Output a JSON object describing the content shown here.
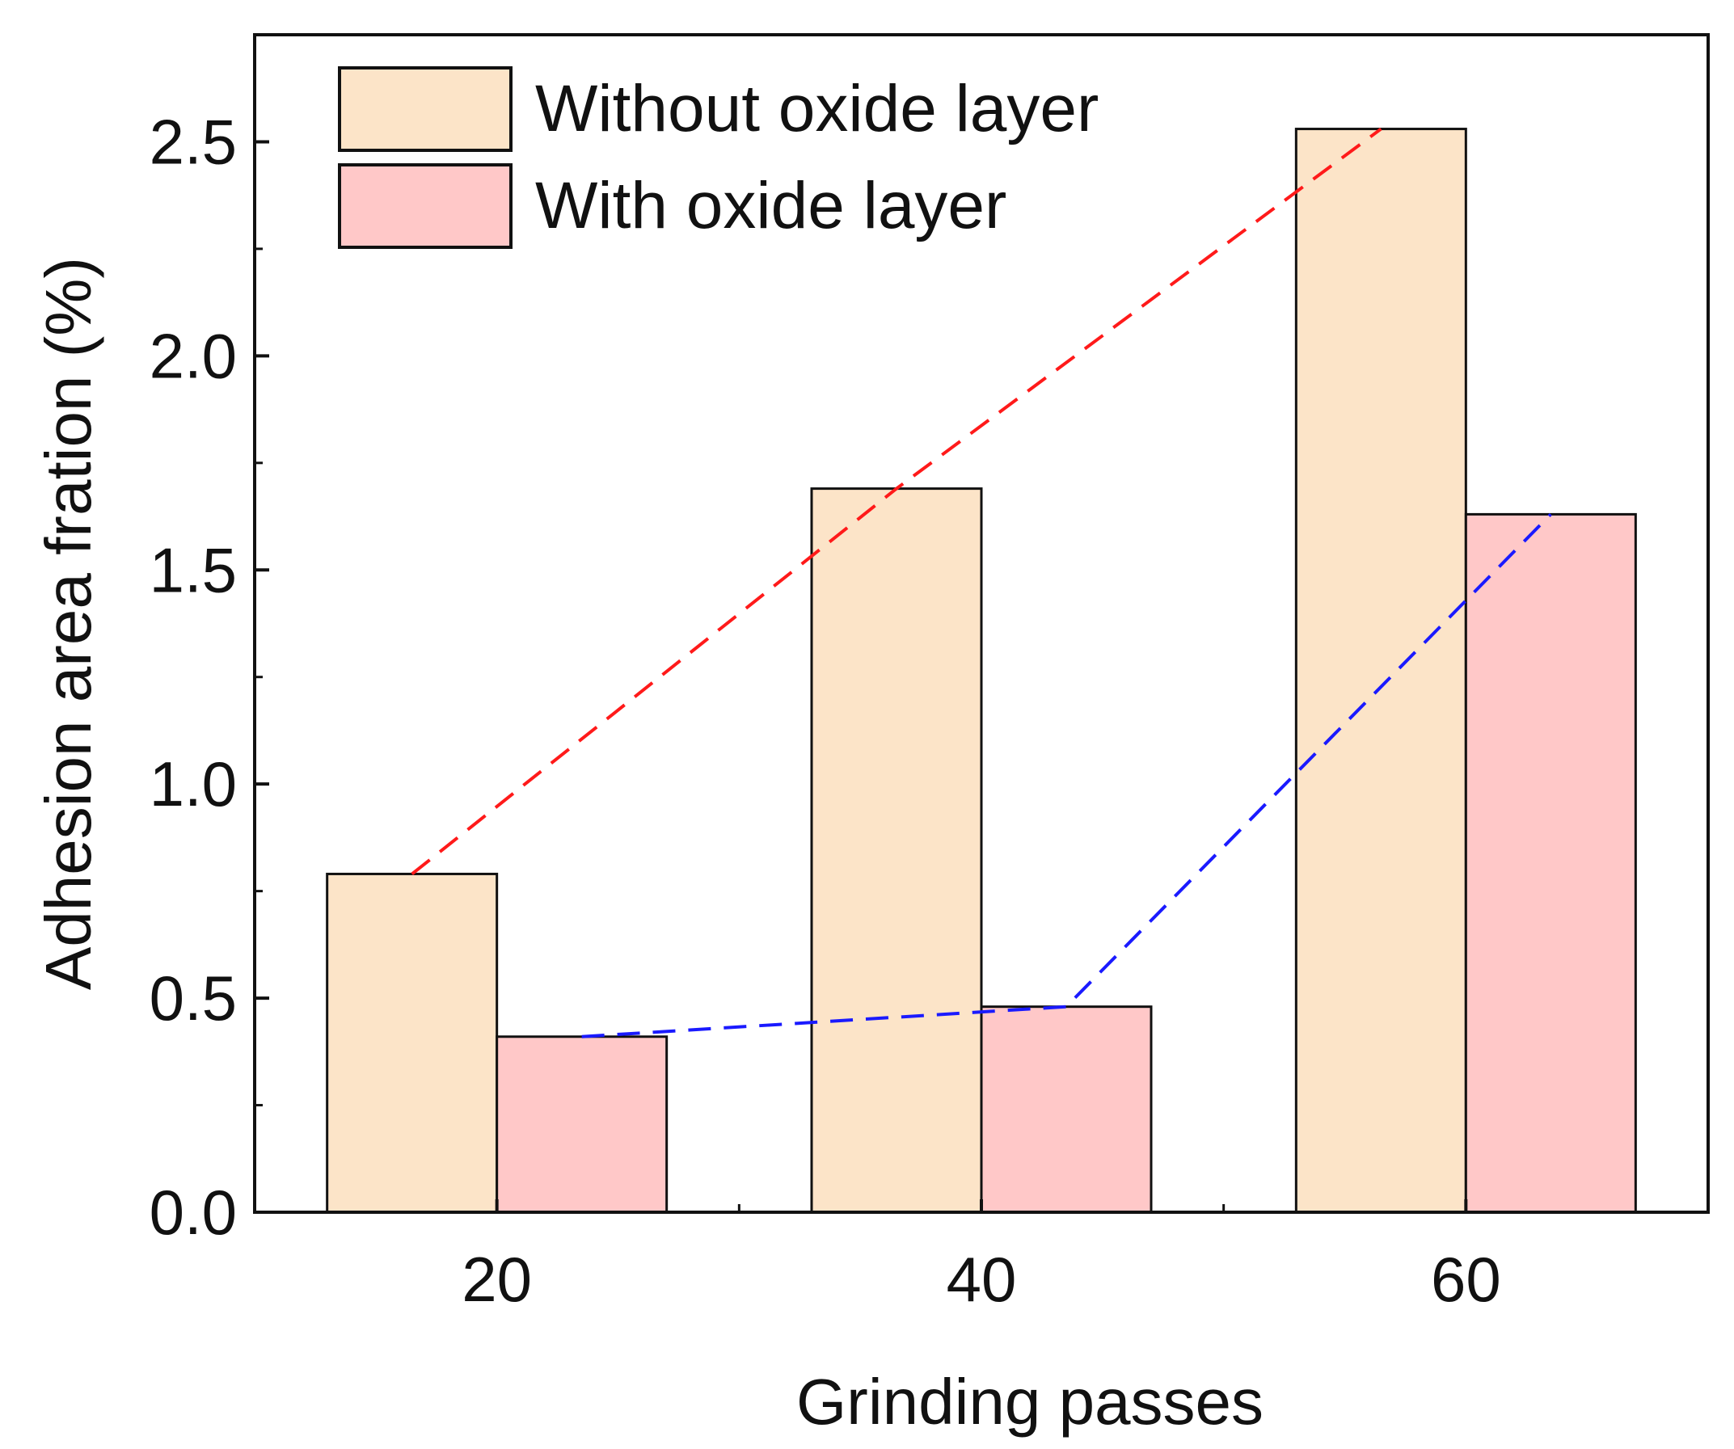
{
  "chart_data": {
    "type": "bar",
    "title": "",
    "xlabel": "Grinding passes",
    "ylabel": "Adhesion area fration (%)",
    "categories": [
      "20",
      "40",
      "60"
    ],
    "ylim": [
      0,
      2.75
    ],
    "yticks": [
      "0.0",
      "0.5",
      "1.0",
      "1.5",
      "2.0",
      "2.5"
    ],
    "ytick_values": [
      0.0,
      0.5,
      1.0,
      1.5,
      2.0,
      2.5
    ],
    "grid": false,
    "legend_position": "top-left",
    "series": [
      {
        "name": "Without oxide layer",
        "values": [
          0.79,
          1.69,
          2.53
        ],
        "color": "#FCE4C8",
        "trend_color": "#FF1A1A"
      },
      {
        "name": "With oxide layer",
        "values": [
          0.41,
          0.48,
          1.63
        ],
        "color": "#FFC8C8",
        "trend_color": "#1A1AFF"
      }
    ]
  }
}
